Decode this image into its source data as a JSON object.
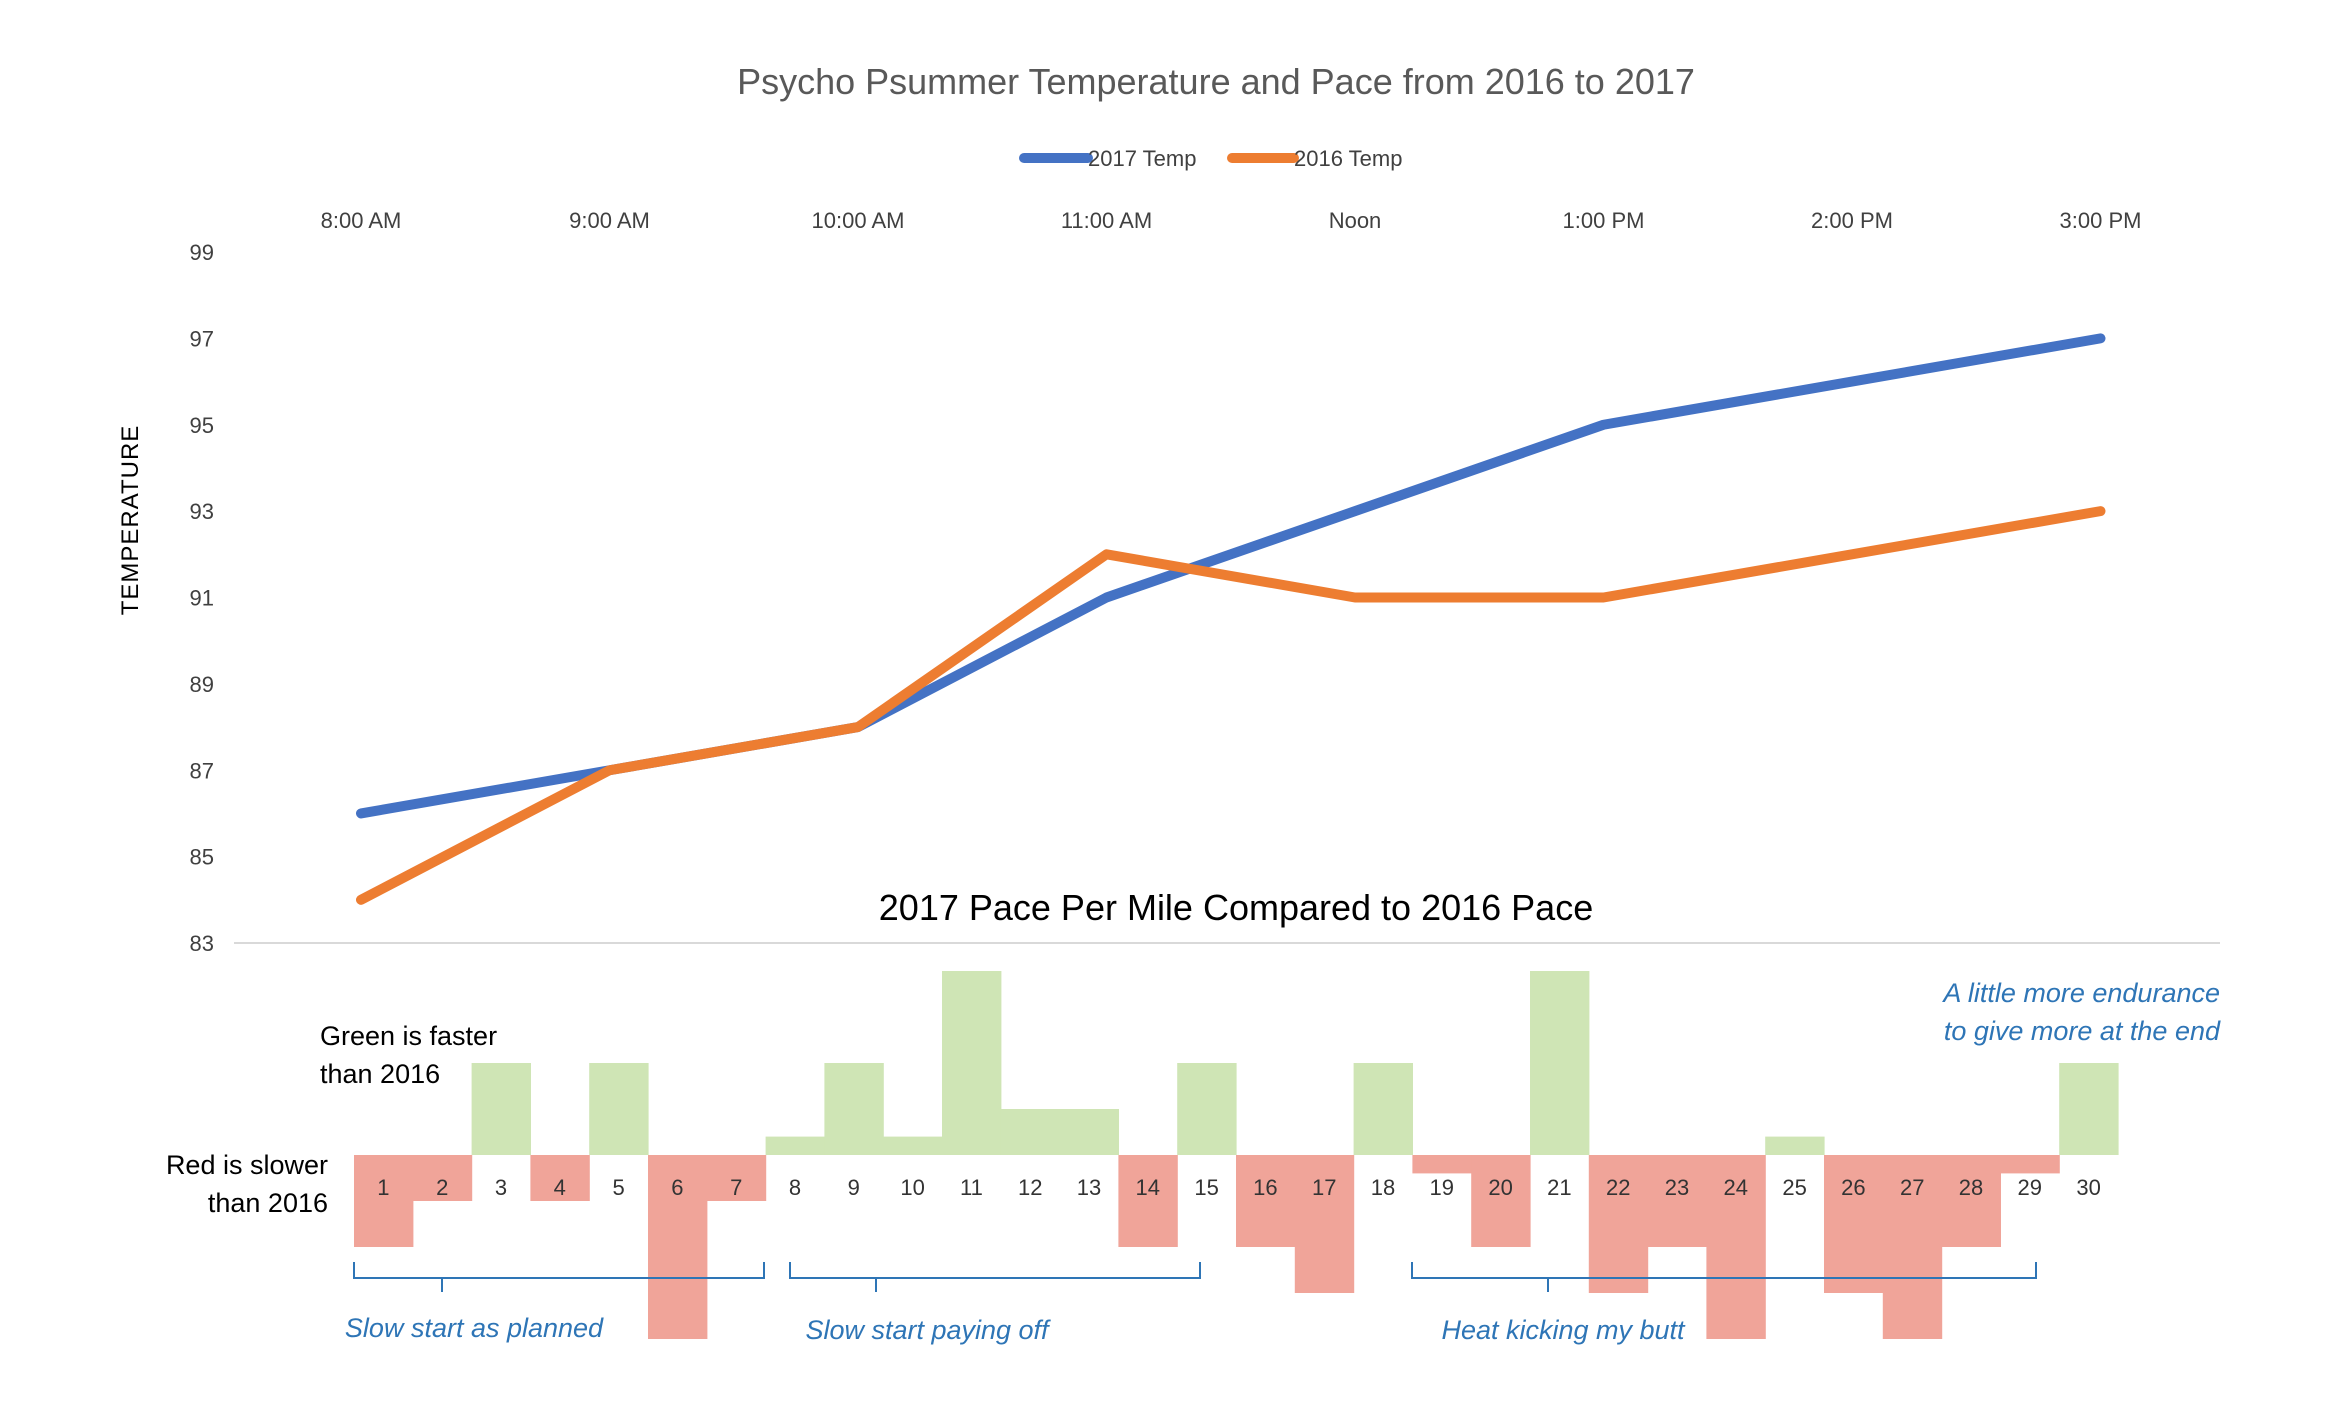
{
  "colors": {
    "series_2017": "#4472C4",
    "series_2016": "#ED7D31",
    "faster": "#CFE5B5",
    "slower": "#F0A499",
    "annotation": "#2E75B6"
  },
  "chart_data": [
    {
      "type": "line",
      "title": "Psycho Psummer Temperature and Pace from 2016 to 2017",
      "xlabel": "",
      "ylabel": "TEMPERATURE",
      "categories": [
        "8:00 AM",
        "9:00 AM",
        "10:00 AM",
        "11:00 AM",
        "Noon",
        "1:00 PM",
        "2:00 PM",
        "3:00 PM"
      ],
      "series": [
        {
          "name": "2017 Temp",
          "values": [
            86,
            87,
            88,
            91,
            93,
            95,
            96,
            97
          ]
        },
        {
          "name": "2016 Temp",
          "values": [
            84,
            87,
            88,
            92,
            91,
            91,
            92,
            93
          ]
        }
      ],
      "ylim": [
        83,
        99
      ],
      "yticks": [
        "83",
        "85",
        "87",
        "89",
        "91",
        "93",
        "95",
        "97",
        "99"
      ],
      "grid": false,
      "legend": "top"
    },
    {
      "type": "bar",
      "title": "2017 Pace Per Mile Compared to 2016 Pace",
      "categories": [
        "1",
        "2",
        "3",
        "4",
        "5",
        "6",
        "7",
        "8",
        "9",
        "10",
        "11",
        "12",
        "13",
        "14",
        "15",
        "16",
        "17",
        "18",
        "19",
        "20",
        "21",
        "22",
        "23",
        "24",
        "25",
        "26",
        "27",
        "28",
        "29",
        "30"
      ],
      "values": [
        -2,
        -1,
        2,
        -1,
        2,
        -4,
        -1,
        0.4,
        2,
        0.4,
        4,
        1,
        1,
        -2,
        2,
        -2,
        -3,
        2,
        -0.4,
        -2,
        4,
        -3,
        -2,
        -4,
        0.4,
        -3,
        -4,
        -2,
        -0.4,
        2
      ],
      "ylim": [
        -4,
        4
      ]
    }
  ],
  "notes": {
    "green_line1": "Green is faster",
    "green_line2": "than 2016",
    "red_line1": "Red is slower",
    "red_line2": "than 2016"
  },
  "annotations": {
    "slow_start": "Slow start as planned",
    "paying_off": "Slow start paying off",
    "heat": "Heat kicking my butt",
    "endurance_line1": "A little more endurance",
    "endurance_line2": "to give more at the end"
  }
}
